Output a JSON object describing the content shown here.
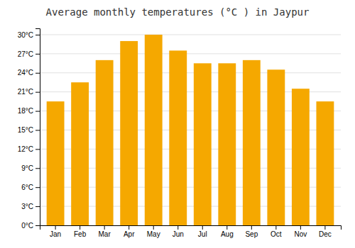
{
  "chart_data": {
    "type": "bar",
    "title": "Average monthly temperatures (°C ) in Jaypur",
    "categories": [
      "Jan",
      "Feb",
      "Mar",
      "Apr",
      "May",
      "Jun",
      "Jul",
      "Aug",
      "Sep",
      "Oct",
      "Nov",
      "Dec"
    ],
    "values": [
      19.5,
      22.5,
      26.0,
      29.0,
      30.0,
      27.5,
      25.5,
      25.5,
      26.0,
      24.5,
      21.5,
      19.5
    ],
    "color": "#F5A800",
    "ylim": [
      0,
      31
    ],
    "yticks": [
      {
        "value": 0,
        "label": "0°C"
      },
      {
        "value": 3,
        "label": "3°C"
      },
      {
        "value": 6,
        "label": "6°C"
      },
      {
        "value": 9,
        "label": "9°C"
      },
      {
        "value": 12,
        "label": "12°C"
      },
      {
        "value": 15,
        "label": "15°C"
      },
      {
        "value": 18,
        "label": "18°C"
      },
      {
        "value": 21,
        "label": "21°C"
      },
      {
        "value": 24,
        "label": "24°C"
      },
      {
        "value": 27,
        "label": "27°C"
      },
      {
        "value": 30,
        "label": "30°C"
      }
    ],
    "grid": true
  }
}
